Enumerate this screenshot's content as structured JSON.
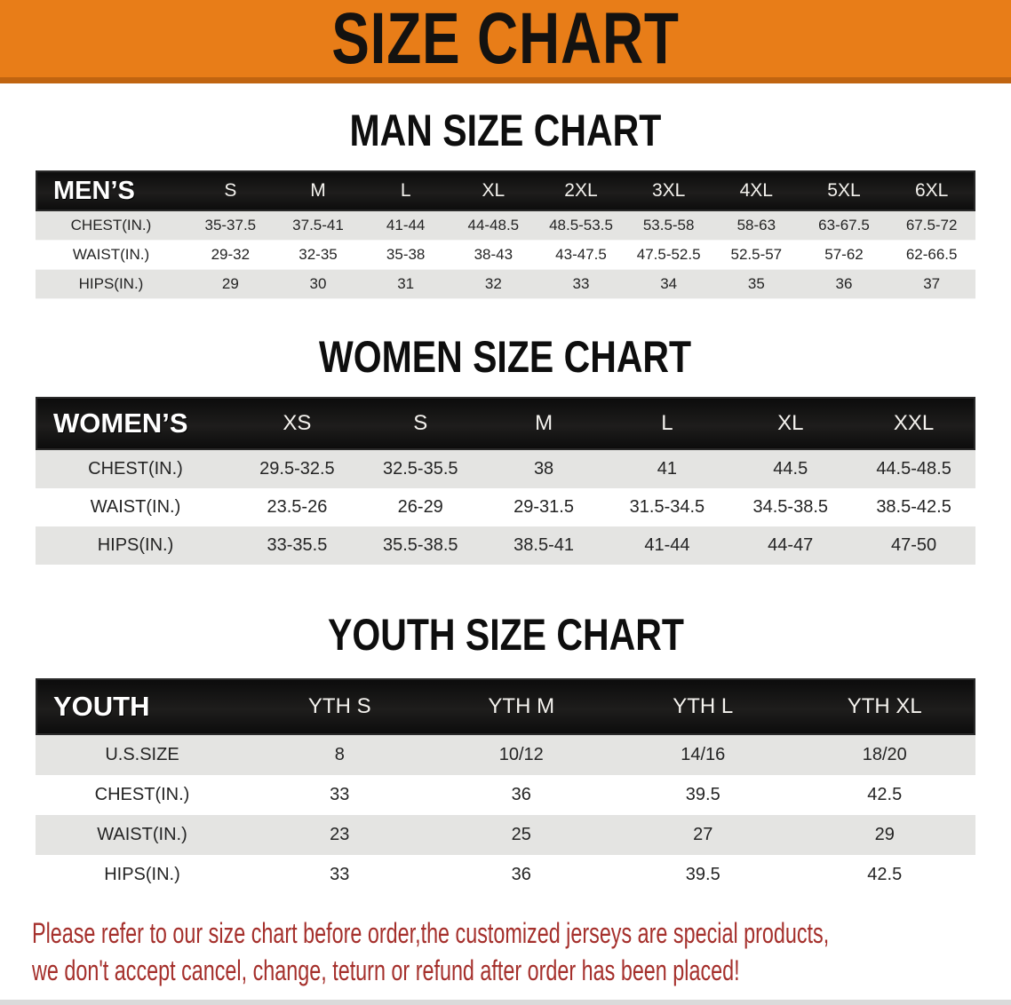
{
  "banner": {
    "title": "SIZE CHART"
  },
  "colors": {
    "banner_orange": "#e87d18",
    "banner_border": "#c06410",
    "header_black": "#121212",
    "row_shaded": "#e4e4e2",
    "disclaimer_red": "#a5302c"
  },
  "sections": [
    {
      "key": "men",
      "title": "MAN SIZE CHART",
      "header_label": "MEN’S",
      "columns": [
        "S",
        "M",
        "L",
        "XL",
        "2XL",
        "3XL",
        "4XL",
        "5XL",
        "6XL"
      ],
      "rows": [
        {
          "label": "CHEST(IN.)",
          "values": [
            "35-37.5",
            "37.5-41",
            "41-44",
            "44-48.5",
            "48.5-53.5",
            "53.5-58",
            "58-63",
            "63-67.5",
            "67.5-72"
          ]
        },
        {
          "label": "WAIST(IN.)",
          "values": [
            "29-32",
            "32-35",
            "35-38",
            "38-43",
            "43-47.5",
            "47.5-52.5",
            "52.5-57",
            "57-62",
            "62-66.5"
          ]
        },
        {
          "label": "HIPS(IN.)",
          "values": [
            "29",
            "30",
            "31",
            "32",
            "33",
            "34",
            "35",
            "36",
            "37"
          ]
        }
      ]
    },
    {
      "key": "women",
      "title": "WOMEN SIZE CHART",
      "header_label": "WOMEN’S",
      "columns": [
        "XS",
        "S",
        "M",
        "L",
        "XL",
        "XXL"
      ],
      "rows": [
        {
          "label": "CHEST(IN.)",
          "values": [
            "29.5-32.5",
            "32.5-35.5",
            "38",
            "41",
            "44.5",
            "44.5-48.5"
          ]
        },
        {
          "label": "WAIST(IN.)",
          "values": [
            "23.5-26",
            "26-29",
            "29-31.5",
            "31.5-34.5",
            "34.5-38.5",
            "38.5-42.5"
          ]
        },
        {
          "label": "HIPS(IN.)",
          "values": [
            "33-35.5",
            "35.5-38.5",
            "38.5-41",
            "41-44",
            "44-47",
            "47-50"
          ]
        }
      ]
    },
    {
      "key": "youth",
      "title": "YOUTH SIZE CHART",
      "header_label": "YOUTH",
      "columns": [
        "YTH S",
        "YTH M",
        "YTH L",
        "YTH XL"
      ],
      "rows": [
        {
          "label": "U.S.SIZE",
          "values": [
            "8",
            "10/12",
            "14/16",
            "18/20"
          ]
        },
        {
          "label": "CHEST(IN.)",
          "values": [
            "33",
            "36",
            "39.5",
            "42.5"
          ]
        },
        {
          "label": "WAIST(IN.)",
          "values": [
            "23",
            "25",
            "27",
            "29"
          ]
        },
        {
          "label": "HIPS(IN.)",
          "values": [
            "33",
            "36",
            "39.5",
            "42.5"
          ]
        }
      ]
    }
  ],
  "disclaimer": {
    "line1": "Please refer to our size chart before order,the customized jerseys are special products,",
    "line2": "we don't accept cancel, change, teturn or refund after order has been placed!"
  }
}
